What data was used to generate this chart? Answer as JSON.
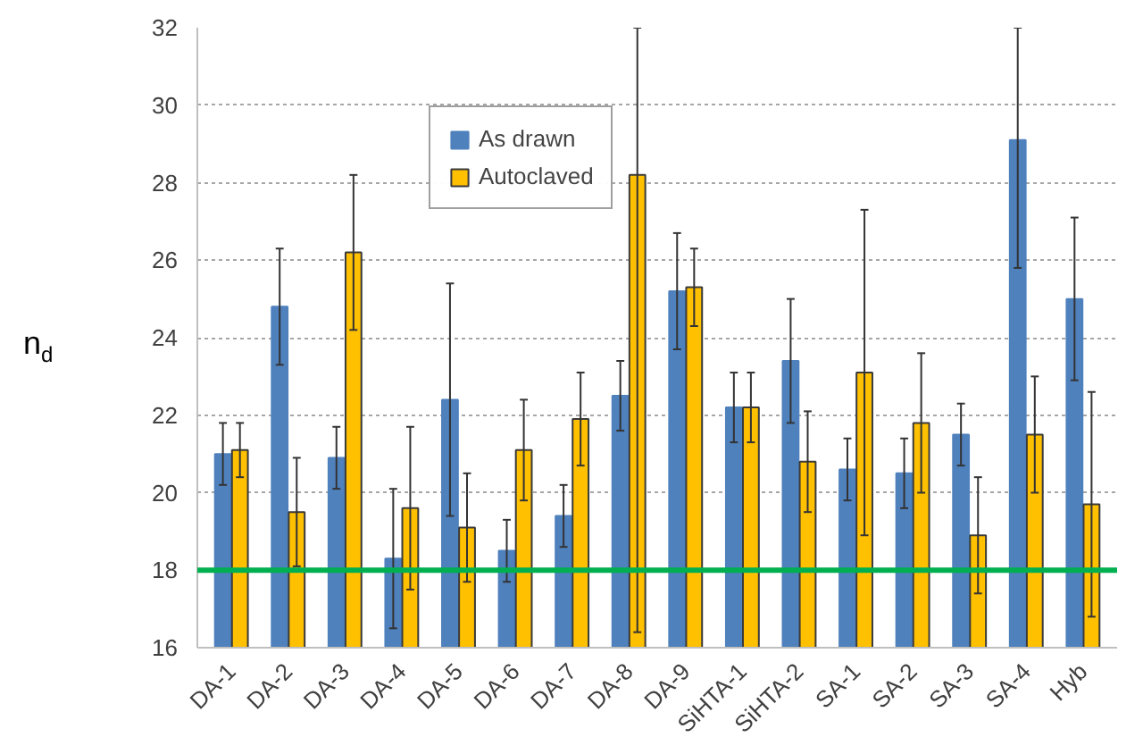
{
  "chart_data": {
    "type": "bar",
    "ylabel": "n$_{d}$",
    "categories": [
      "DA-1",
      "DA-2",
      "DA-3",
      "DA-4",
      "DA-5",
      "DA-6",
      "DA-7",
      "DA-8",
      "DA-9",
      "SiHTA-1",
      "SiHTA-2",
      "SA-1",
      "SA-2",
      "SA-3",
      "SA-4",
      "Hyb"
    ],
    "series": [
      {
        "name": "As drawn",
        "color": "#4f81bd",
        "values": [
          21.0,
          24.8,
          20.9,
          18.3,
          22.4,
          18.5,
          19.4,
          22.5,
          25.2,
          22.2,
          23.4,
          20.6,
          20.5,
          21.5,
          29.1,
          25.0
        ],
        "errors": [
          [
            20.2,
            21.8
          ],
          [
            23.3,
            26.3
          ],
          [
            20.1,
            21.7
          ],
          [
            16.5,
            20.1
          ],
          [
            19.4,
            25.4
          ],
          [
            17.7,
            19.3
          ],
          [
            18.6,
            20.2
          ],
          [
            21.6,
            23.4
          ],
          [
            23.7,
            26.7
          ],
          [
            21.3,
            23.1
          ],
          [
            21.8,
            25.0
          ],
          [
            19.8,
            21.4
          ],
          [
            19.6,
            21.4
          ],
          [
            20.7,
            22.3
          ],
          [
            25.8,
            32
          ],
          [
            22.9,
            27.1
          ]
        ]
      },
      {
        "name": "Autoclaved",
        "color": "#ffc000",
        "values": [
          21.1,
          19.5,
          26.2,
          19.6,
          19.1,
          21.1,
          21.9,
          28.2,
          25.3,
          22.2,
          20.8,
          23.1,
          21.8,
          18.9,
          21.5,
          19.7
        ],
        "errors": [
          [
            20.4,
            21.8
          ],
          [
            18.1,
            20.9
          ],
          [
            24.2,
            28.2
          ],
          [
            17.5,
            21.7
          ],
          [
            17.7,
            20.5
          ],
          [
            19.8,
            22.4
          ],
          [
            20.7,
            23.1
          ],
          [
            16.4,
            32
          ],
          [
            24.3,
            26.3
          ],
          [
            21.3,
            23.1
          ],
          [
            19.5,
            22.1
          ],
          [
            18.9,
            27.3
          ],
          [
            20.0,
            23.6
          ],
          [
            17.4,
            20.4
          ],
          [
            20.0,
            23.0
          ],
          [
            16.8,
            22.6
          ]
        ]
      }
    ],
    "ylim": [
      16,
      32
    ],
    "yticks": [
      16,
      18,
      20,
      22,
      24,
      26,
      28,
      30,
      32
    ],
    "grid": "y",
    "legend": "top left",
    "ref_lines": [
      {
        "axis": "y",
        "value": 18,
        "color": "#00b050"
      }
    ]
  }
}
